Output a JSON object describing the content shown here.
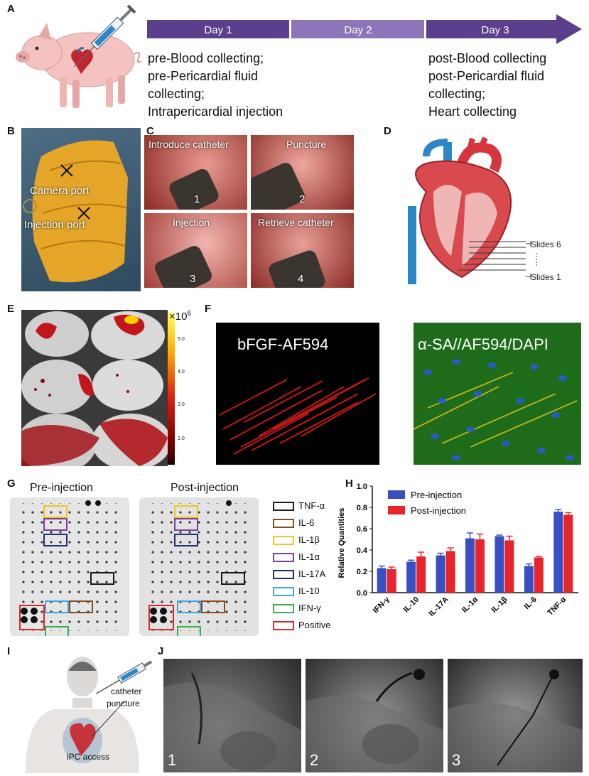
{
  "panels": {
    "a": "A",
    "b": "B",
    "c": "C",
    "d": "D",
    "e": "E",
    "f": "F",
    "g": "G",
    "h": "H",
    "i": "I",
    "j": "J"
  },
  "timeline": {
    "days": [
      "Day 1",
      "Day 2",
      "Day 3"
    ],
    "day1_steps": [
      "pre-Blood collecting;",
      "pre-Pericardial fluid",
      "collecting;",
      "Intrapericardial injection"
    ],
    "day3_steps": [
      "post-Blood collecting",
      "post-Pericardial fluid",
      "collecting;",
      "Heart collecting"
    ],
    "colors": {
      "day1": "#5b3f8c",
      "day2": "#8c75b8",
      "day3": "#5b3f8c"
    }
  },
  "panel_b": {
    "camera_port": "Camera port",
    "injection_port": "Injection port"
  },
  "panel_c": {
    "steps": [
      {
        "label": "Introduce catheter",
        "num": "1"
      },
      {
        "label": "Puncture",
        "num": "2"
      },
      {
        "label": "Injection",
        "num": "3"
      },
      {
        "label": "Retrieve catheter",
        "num": "4"
      }
    ]
  },
  "panel_d": {
    "slides_top": "Slides 6",
    "slides_bottom": "Slides 1"
  },
  "panel_e": {
    "scale_unit": "×10",
    "scale_exp": "6",
    "scale_ticks": [
      "5.0",
      "4.0",
      "3.0",
      "2.0"
    ]
  },
  "panel_f": {
    "left_label": "bFGF-AF594",
    "right_label": "α-SA//AF594/DAPI"
  },
  "panel_g": {
    "pre_title": "Pre-injection",
    "post_title": "Post-injection",
    "legend": [
      {
        "name": "TNF-α",
        "color": "#1a1a1a"
      },
      {
        "name": "IL-6",
        "color": "#8a4a20"
      },
      {
        "name": "IL-1β",
        "color": "#f5c518"
      },
      {
        "name": "IL-1α",
        "color": "#7b3fa0"
      },
      {
        "name": "IL-17A",
        "color": "#1f2f6b"
      },
      {
        "name": "IL-10",
        "color": "#3aa8e0"
      },
      {
        "name": "IFN-γ",
        "color": "#35b34a"
      },
      {
        "name": "Positive",
        "color": "#d42a2a"
      }
    ]
  },
  "chart_data": {
    "type": "bar",
    "categories": [
      "IFN-γ",
      "IL-10",
      "IL-17A",
      "IL-1α",
      "IL-1β",
      "IL-6",
      "TNF-α"
    ],
    "series": [
      {
        "name": "Pre-injection",
        "color": "#3a4fc4",
        "values": [
          0.23,
          0.29,
          0.35,
          0.51,
          0.53,
          0.25,
          0.76
        ],
        "errors": [
          0.02,
          0.015,
          0.02,
          0.05,
          0.01,
          0.02,
          0.02
        ]
      },
      {
        "name": "Post-injection",
        "color": "#e8242b",
        "values": [
          0.22,
          0.34,
          0.39,
          0.5,
          0.49,
          0.33,
          0.73
        ],
        "errors": [
          0.02,
          0.04,
          0.03,
          0.05,
          0.04,
          0.01,
          0.02
        ]
      }
    ],
    "ylabel": "Relative Quantities",
    "ylim": [
      0,
      1.0
    ],
    "yticks": [
      "0.0",
      "0.2",
      "0.4",
      "0.6",
      "0.8",
      "1.0"
    ],
    "legend_position": "top-left"
  },
  "panel_i": {
    "catheter": "catheter",
    "puncture": "puncture",
    "access": "iPC access"
  },
  "panel_j": {
    "nums": [
      "1",
      "2",
      "3"
    ]
  }
}
